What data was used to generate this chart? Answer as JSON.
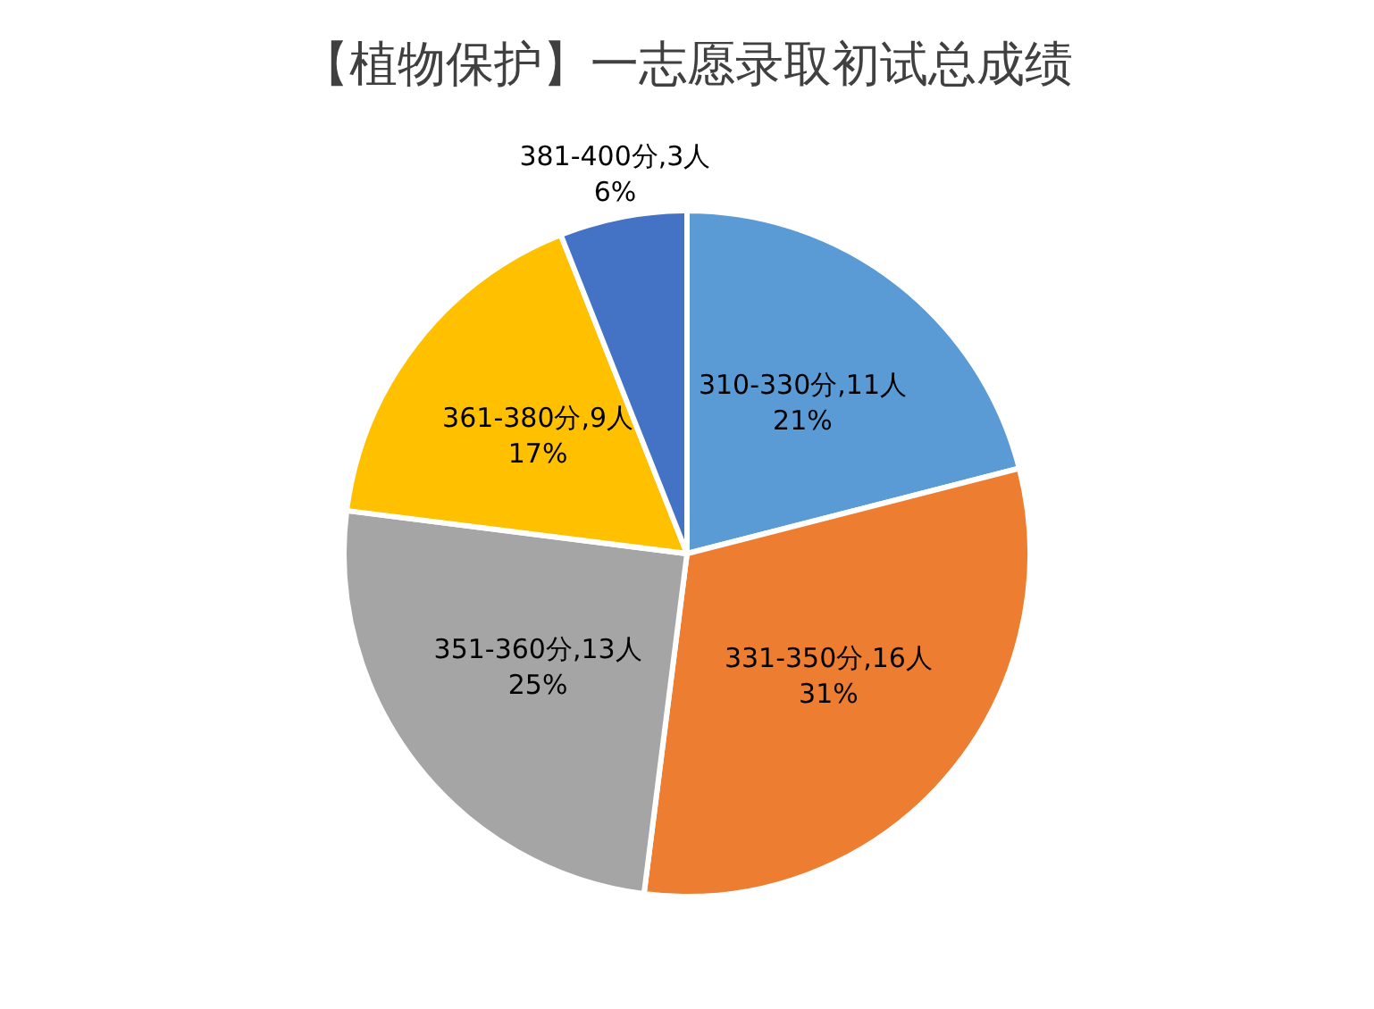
{
  "chart_data": {
    "type": "pie",
    "title": "【植物保护】一志愿录取初试总成绩",
    "categories": [
      "310-330分,11人",
      "331-350分,16人",
      "351-360分,13人",
      "361-380分,9人",
      "381-400分,3人"
    ],
    "values": [
      21,
      31,
      25,
      17,
      6
    ],
    "value_labels": [
      "21%",
      "31%",
      "25%",
      "17%",
      "6%"
    ],
    "colors": [
      "#5b9bd5",
      "#ed7d31",
      "#a5a5a5",
      "#ffc000",
      "#4472c4"
    ],
    "legend": false
  }
}
